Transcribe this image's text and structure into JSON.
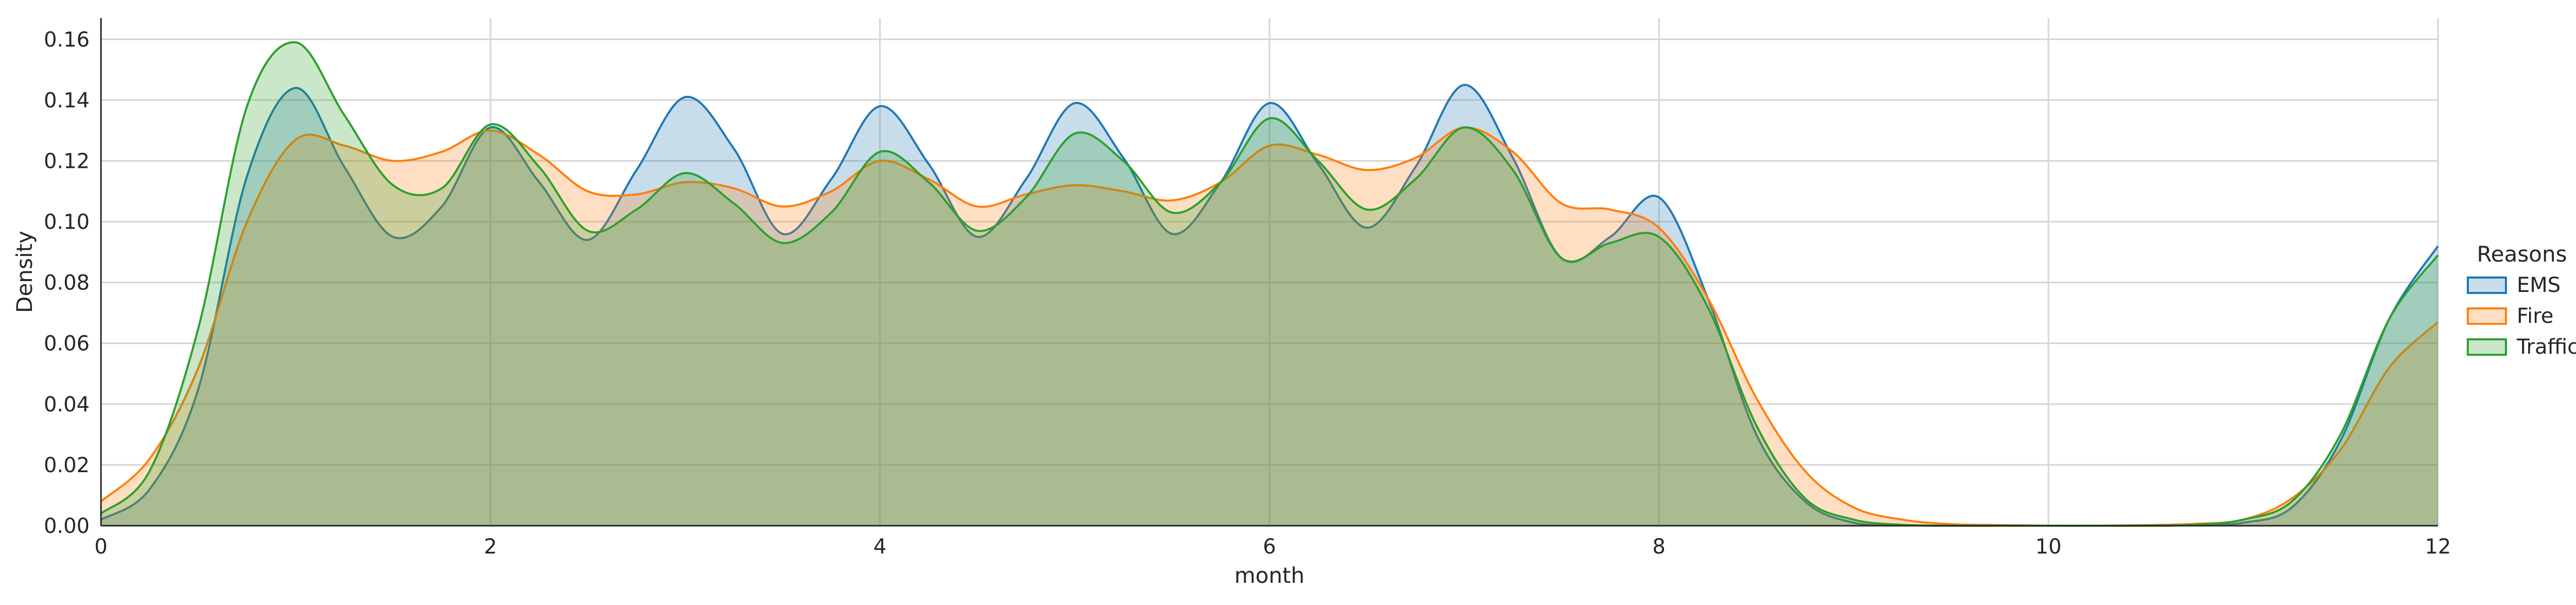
{
  "chart_data": {
    "type": "area",
    "title": "",
    "xlabel": "month",
    "ylabel": "Density",
    "xlim": [
      0,
      12
    ],
    "ylim": [
      0,
      0.167
    ],
    "xticks": [
      0,
      2,
      4,
      6,
      8,
      10,
      12
    ],
    "xtick_labels": [
      "0",
      "2",
      "4",
      "6",
      "8",
      "10",
      "12"
    ],
    "yticks": [
      0,
      0.02,
      0.04,
      0.06,
      0.08,
      0.1,
      0.12,
      0.14,
      0.16
    ],
    "ytick_labels": [
      "0.00",
      "0.02",
      "0.04",
      "0.06",
      "0.08",
      "0.10",
      "0.12",
      "0.14",
      "0.16"
    ],
    "grid": true,
    "legend": {
      "title": "Reasons",
      "placement": "right"
    },
    "x": [
      0,
      0.25,
      0.5,
      0.75,
      1,
      1.25,
      1.5,
      1.75,
      2,
      2.25,
      2.5,
      2.75,
      3,
      3.25,
      3.5,
      3.75,
      4,
      4.25,
      4.5,
      4.75,
      5,
      5.25,
      5.5,
      5.75,
      6,
      6.25,
      6.5,
      6.75,
      7,
      7.25,
      7.5,
      7.75,
      8,
      8.25,
      8.5,
      8.75,
      9,
      9.25,
      9.5,
      9.75,
      10,
      10.25,
      10.5,
      10.75,
      11,
      11.25,
      11.5,
      11.75,
      12
    ],
    "series": [
      {
        "name": "EMS",
        "color": "#1f77b4",
        "values": [
          0.002,
          0.012,
          0.045,
          0.115,
          0.144,
          0.118,
          0.095,
          0.105,
          0.131,
          0.113,
          0.094,
          0.117,
          0.141,
          0.124,
          0.096,
          0.114,
          0.138,
          0.119,
          0.095,
          0.114,
          0.139,
          0.121,
          0.096,
          0.113,
          0.139,
          0.119,
          0.098,
          0.118,
          0.145,
          0.121,
          0.088,
          0.095,
          0.108,
          0.075,
          0.03,
          0.008,
          0.001,
          0.0002,
          0,
          0,
          0,
          0,
          0,
          0.0002,
          0.001,
          0.006,
          0.028,
          0.068,
          0.092
        ]
      },
      {
        "name": "Fire",
        "color": "#ff7f0e",
        "values": [
          0.008,
          0.022,
          0.052,
          0.1,
          0.127,
          0.125,
          0.12,
          0.123,
          0.13,
          0.122,
          0.11,
          0.109,
          0.113,
          0.111,
          0.105,
          0.11,
          0.12,
          0.114,
          0.105,
          0.109,
          0.112,
          0.11,
          0.107,
          0.113,
          0.125,
          0.122,
          0.117,
          0.121,
          0.131,
          0.123,
          0.106,
          0.104,
          0.098,
          0.075,
          0.042,
          0.018,
          0.006,
          0.002,
          0.0005,
          0.0002,
          0,
          0,
          0.0002,
          0.0006,
          0.002,
          0.009,
          0.025,
          0.052,
          0.067
        ]
      },
      {
        "name": "Traffic",
        "color": "#2ca02c",
        "values": [
          0.004,
          0.018,
          0.065,
          0.138,
          0.159,
          0.135,
          0.112,
          0.111,
          0.132,
          0.118,
          0.097,
          0.104,
          0.116,
          0.106,
          0.093,
          0.103,
          0.123,
          0.113,
          0.097,
          0.108,
          0.129,
          0.12,
          0.103,
          0.113,
          0.134,
          0.12,
          0.104,
          0.114,
          0.131,
          0.117,
          0.088,
          0.093,
          0.095,
          0.072,
          0.033,
          0.009,
          0.002,
          0.0003,
          0,
          0,
          0,
          0,
          0,
          0.0003,
          0.002,
          0.008,
          0.03,
          0.068,
          0.089
        ]
      }
    ]
  }
}
